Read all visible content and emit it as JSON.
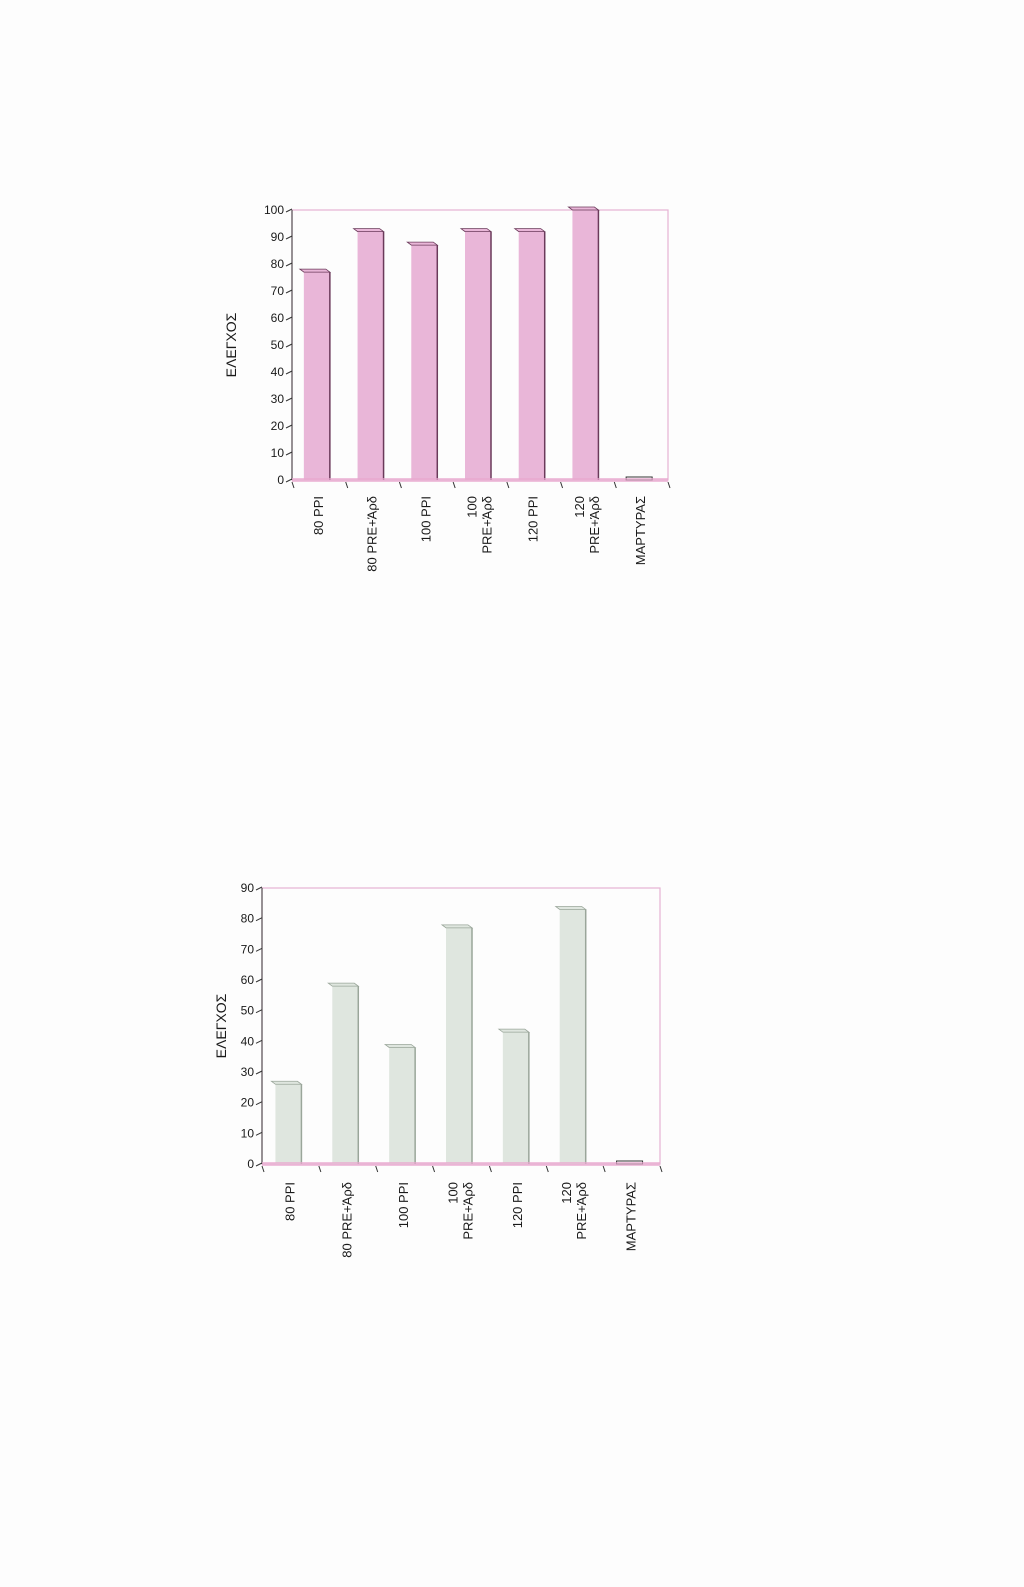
{
  "colors": {
    "chart1_bar": "#e9b6d8",
    "chart1_bar_edge": "#6a3a5a",
    "chart2_bar": "#dfe6df",
    "chart2_bar_edge": "#9aa69a",
    "frame": "#e6b3d3",
    "baseline": "#e8a8cf",
    "axis": "#333333"
  },
  "chart_data": [
    {
      "type": "bar",
      "ylabel": "ΕΛΕΓΧΟΣ",
      "ylim": [
        0,
        100
      ],
      "yticks": [
        "0",
        "10",
        "20",
        "30",
        "40",
        "50",
        "60",
        "70",
        "80",
        "90",
        "100"
      ],
      "categories": [
        [
          "80 PPI"
        ],
        [
          "80 PRE+Άρδ"
        ],
        [
          "100 PPI"
        ],
        [
          "100",
          "PRE+Άρδ"
        ],
        [
          "120 PPI"
        ],
        [
          "120",
          "PRE+Άρδ"
        ],
        [
          "ΜΑΡΤΥΡΑΣ"
        ]
      ],
      "values": [
        77,
        92,
        87,
        92,
        92,
        100,
        0
      ]
    },
    {
      "type": "bar",
      "ylabel": "ΕΛΕΓΧΟΣ",
      "ylim": [
        0,
        90
      ],
      "yticks": [
        "0",
        "10",
        "20",
        "30",
        "40",
        "50",
        "60",
        "70",
        "80",
        "90"
      ],
      "categories": [
        [
          "80 PPI"
        ],
        [
          "80 PRE+Άρδ"
        ],
        [
          "100 PPI"
        ],
        [
          "100",
          "PRE+Άρδ"
        ],
        [
          "120 PPI"
        ],
        [
          "120",
          "PRE+Άρδ"
        ],
        [
          "ΜΑΡΤΥΡΑΣ"
        ]
      ],
      "values": [
        26,
        58,
        38,
        77,
        43,
        83,
        0
      ]
    }
  ]
}
